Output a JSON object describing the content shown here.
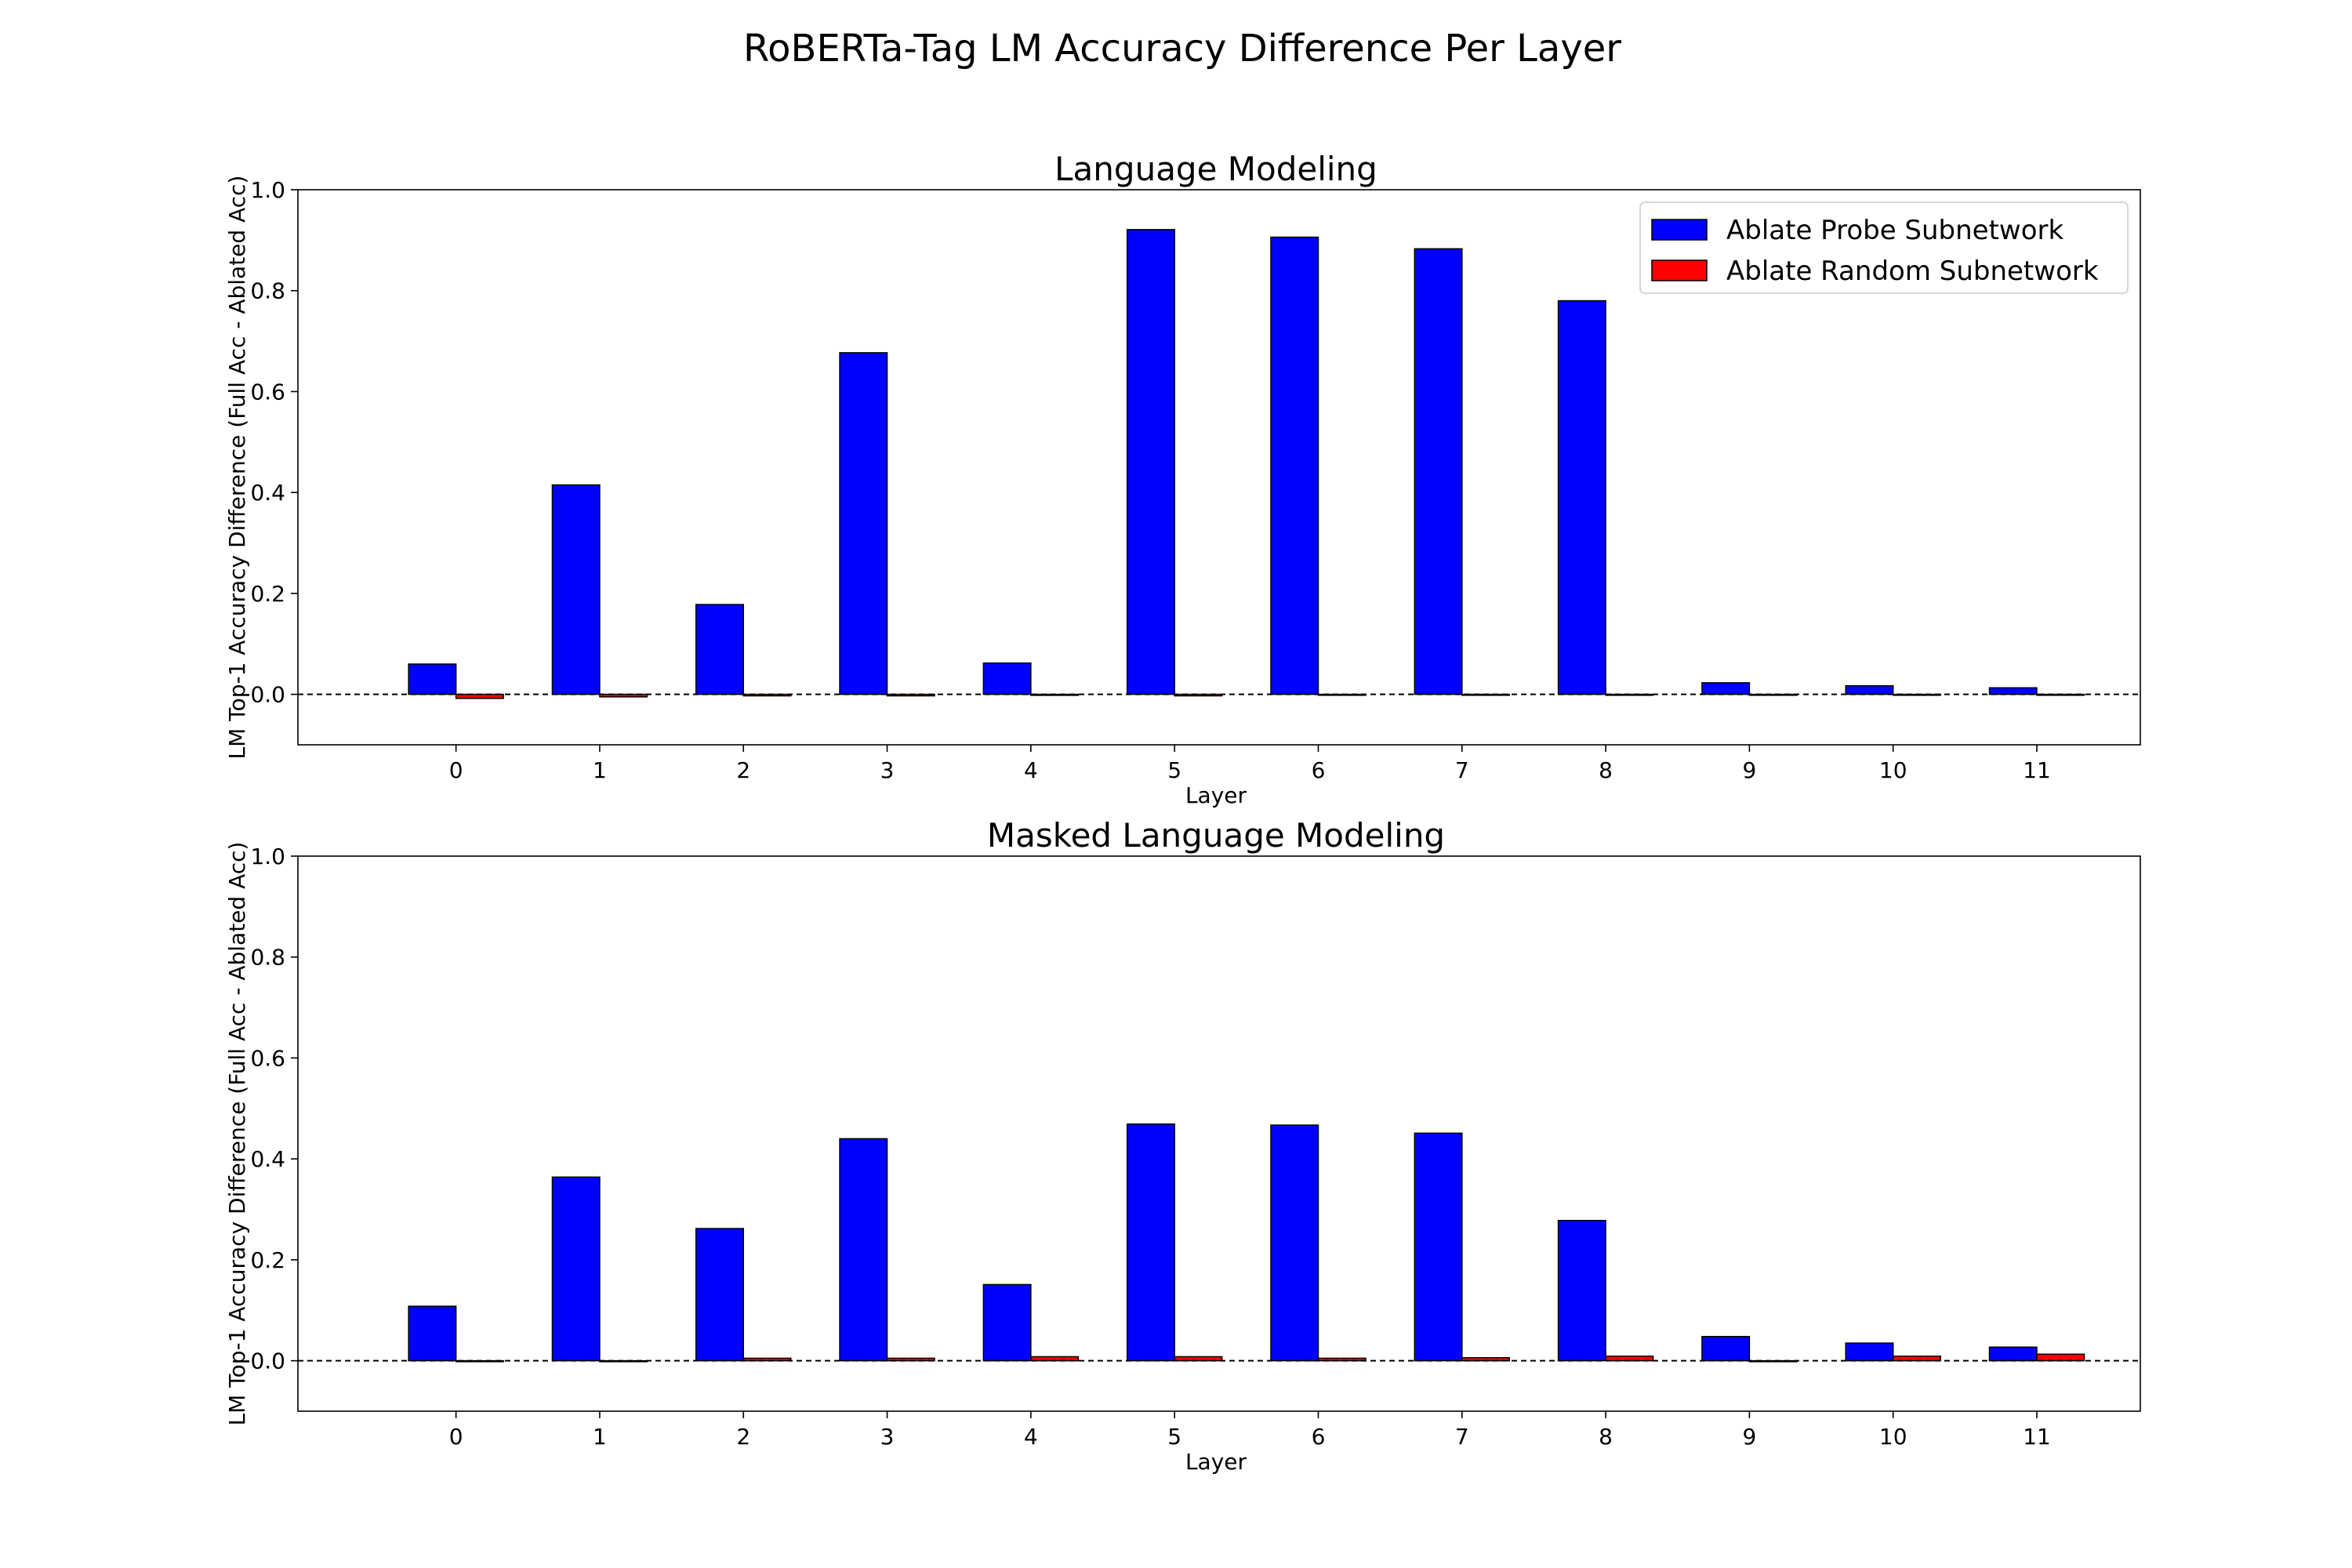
{
  "figure": {
    "title": "RoBERTa-Tag LM Accuracy Difference Per Layer"
  },
  "legend": {
    "placement": "upper-right",
    "entries": [
      {
        "name": "Ablate Probe Subnetwork",
        "color": "#0000ff"
      },
      {
        "name": "Ablate Random Subnetwork",
        "color": "#ff0000"
      }
    ]
  },
  "chart_data": [
    {
      "type": "bar",
      "title": "Language Modeling",
      "xlabel": "Layer",
      "ylabel": "LM Top-1 Accuracy Difference (Full Acc - Ablated Acc)",
      "ylim": [
        -0.1,
        1.0
      ],
      "yticks": [
        "0.0",
        "0.2",
        "0.4",
        "0.6",
        "0.8",
        "1.0"
      ],
      "categories": [
        "0",
        "1",
        "2",
        "3",
        "4",
        "5",
        "6",
        "7",
        "8",
        "9",
        "10",
        "11"
      ],
      "zero_line": "dashed",
      "grid": false,
      "series": [
        {
          "name": "Ablate Probe Subnetwork",
          "color": "#0000ff",
          "values": [
            0.06,
            0.415,
            0.178,
            0.677,
            0.062,
            0.921,
            0.906,
            0.883,
            0.78,
            0.023,
            0.017,
            0.013
          ]
        },
        {
          "name": "Ablate Random Subnetwork",
          "color": "#ff0000",
          "values": [
            -0.008,
            -0.005,
            -0.003,
            -0.003,
            -0.002,
            -0.003,
            -0.001,
            -0.001,
            -0.001,
            -0.001,
            -0.001,
            -0.001
          ]
        }
      ]
    },
    {
      "type": "bar",
      "title": "Masked Language Modeling",
      "xlabel": "Layer",
      "ylabel": "LM Top-1 Accuracy Difference (Full Acc - Ablated Acc)",
      "ylim": [
        -0.1,
        1.0
      ],
      "yticks": [
        "0.0",
        "0.2",
        "0.4",
        "0.6",
        "0.8",
        "1.0"
      ],
      "categories": [
        "0",
        "1",
        "2",
        "3",
        "4",
        "5",
        "6",
        "7",
        "8",
        "9",
        "10",
        "11"
      ],
      "zero_line": "dashed",
      "grid": false,
      "series": [
        {
          "name": "Ablate Probe Subnetwork",
          "color": "#0000ff",
          "values": [
            0.108,
            0.364,
            0.262,
            0.44,
            0.151,
            0.469,
            0.467,
            0.451,
            0.278,
            0.048,
            0.035,
            0.027
          ]
        },
        {
          "name": "Ablate Random Subnetwork",
          "color": "#ff0000",
          "values": [
            0.0,
            0.0,
            0.005,
            0.005,
            0.008,
            0.008,
            0.005,
            0.006,
            0.009,
            -0.001,
            0.009,
            0.013
          ]
        }
      ]
    }
  ]
}
